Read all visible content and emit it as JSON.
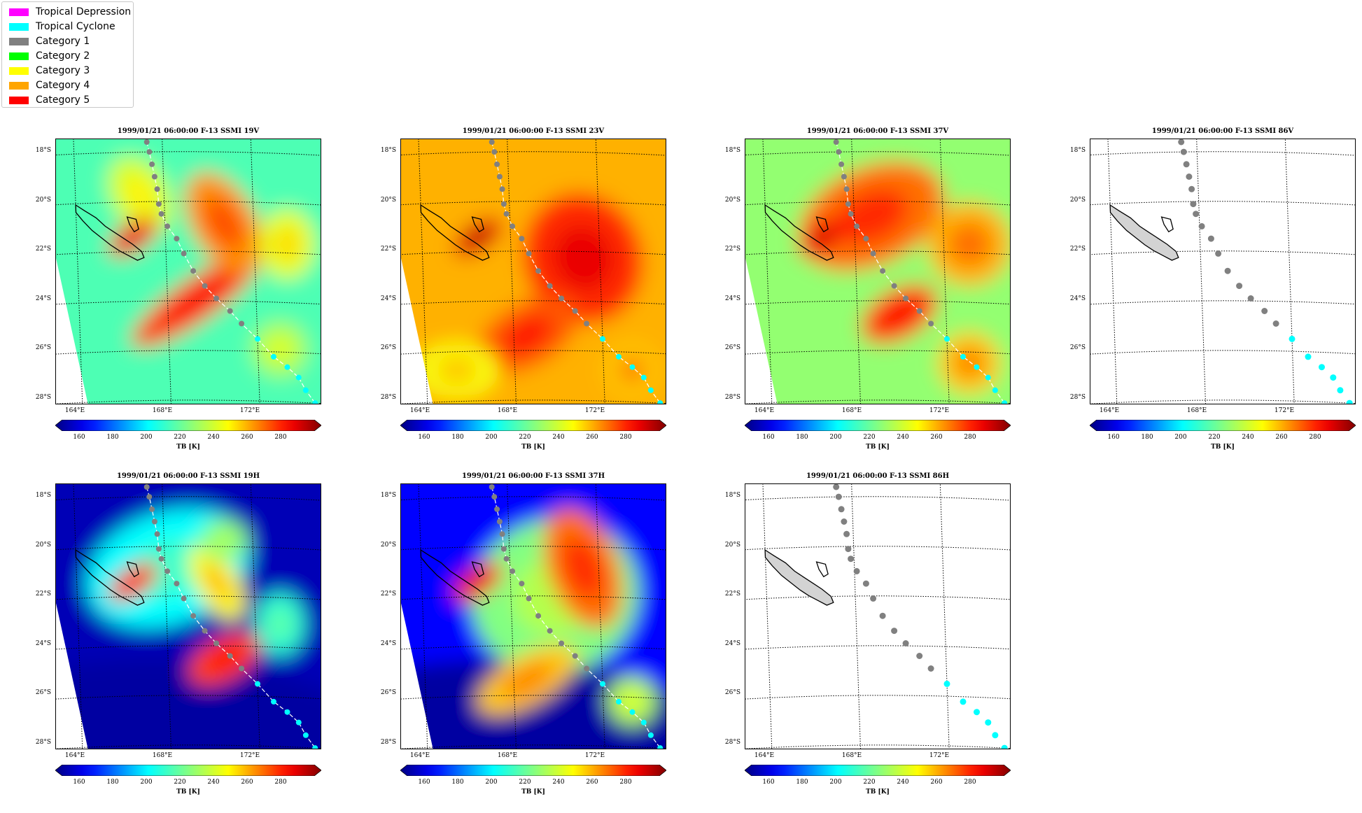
{
  "legend": {
    "items": [
      {
        "label": "Tropical Depression",
        "color": "#ff00ff"
      },
      {
        "label": "Tropical Cyclone",
        "color": "#00ffff"
      },
      {
        "label": "Category 1",
        "color": "#808080"
      },
      {
        "label": "Category 2",
        "color": "#00ff00"
      },
      {
        "label": "Category 3",
        "color": "#ffff00"
      },
      {
        "label": "Category 4",
        "color": "#ffa500"
      },
      {
        "label": "Category 5",
        "color": "#ff0000"
      }
    ]
  },
  "lat_labels": [
    "18°S",
    "20°S",
    "22°S",
    "24°S",
    "26°S",
    "28°S"
  ],
  "lon_labels": [
    "164°E",
    "168°E",
    "172°E"
  ],
  "colorbar": {
    "ticks": [
      "160",
      "180",
      "200",
      "220",
      "240",
      "260",
      "280"
    ],
    "label": "TB [K]",
    "min": 150,
    "max": 300
  },
  "panels": [
    {
      "id": "19v",
      "title": "1999/01/21 06:00:00  F-13 SSMI 19V",
      "field": "19v"
    },
    {
      "id": "23v",
      "title": "1999/01/21 06:00:00  F-13 SSMI 23V",
      "field": "23v"
    },
    {
      "id": "37v",
      "title": "1999/01/21 06:00:00  F-13 SSMI 37V",
      "field": "37v"
    },
    {
      "id": "86v",
      "title": "1999/01/21 06:00:00  F-13 SSMI 86V",
      "field": "none"
    },
    {
      "id": "19h",
      "title": "1999/01/21 06:00:00  F-13 SSMI 19H",
      "field": "19h"
    },
    {
      "id": "37h",
      "title": "1999/01/21 06:00:00  F-13 SSMI 37H",
      "field": "37h"
    },
    {
      "id": "86h",
      "title": "1999/01/21 06:00:00  F-13 SSMI 86H",
      "field": "none"
    }
  ],
  "track": {
    "category1_color": "#808080",
    "tc_color": "#00ffff",
    "points": [
      {
        "lon": 167.3,
        "lat": -17.6,
        "cat": "Category 1"
      },
      {
        "lon": 167.4,
        "lat": -18.0,
        "cat": "Category 1"
      },
      {
        "lon": 167.5,
        "lat": -18.5,
        "cat": "Category 1"
      },
      {
        "lon": 167.6,
        "lat": -19.0,
        "cat": "Category 1"
      },
      {
        "lon": 167.7,
        "lat": -19.5,
        "cat": "Category 1"
      },
      {
        "lon": 167.75,
        "lat": -20.1,
        "cat": "Category 1"
      },
      {
        "lon": 167.85,
        "lat": -20.5,
        "cat": "Category 1"
      },
      {
        "lon": 168.1,
        "lat": -21.0,
        "cat": "Category 1"
      },
      {
        "lon": 168.5,
        "lat": -21.5,
        "cat": "Category 1"
      },
      {
        "lon": 168.8,
        "lat": -22.1,
        "cat": "Category 1"
      },
      {
        "lon": 169.2,
        "lat": -22.8,
        "cat": "Category 1"
      },
      {
        "lon": 169.7,
        "lat": -23.4,
        "cat": "Category 1"
      },
      {
        "lon": 170.2,
        "lat": -23.9,
        "cat": "Category 1"
      },
      {
        "lon": 170.8,
        "lat": -24.4,
        "cat": "Category 1"
      },
      {
        "lon": 171.3,
        "lat": -24.9,
        "cat": "Category 1"
      },
      {
        "lon": 172.0,
        "lat": -25.5,
        "cat": "Tropical Cyclone"
      },
      {
        "lon": 172.7,
        "lat": -26.2,
        "cat": "Tropical Cyclone"
      },
      {
        "lon": 173.3,
        "lat": -26.6,
        "cat": "Tropical Cyclone"
      },
      {
        "lon": 173.8,
        "lat": -27.0,
        "cat": "Tropical Cyclone"
      },
      {
        "lon": 174.1,
        "lat": -27.5,
        "cat": "Tropical Cyclone"
      },
      {
        "lon": 174.5,
        "lat": -28.0,
        "cat": "Tropical Cyclone"
      }
    ]
  }
}
